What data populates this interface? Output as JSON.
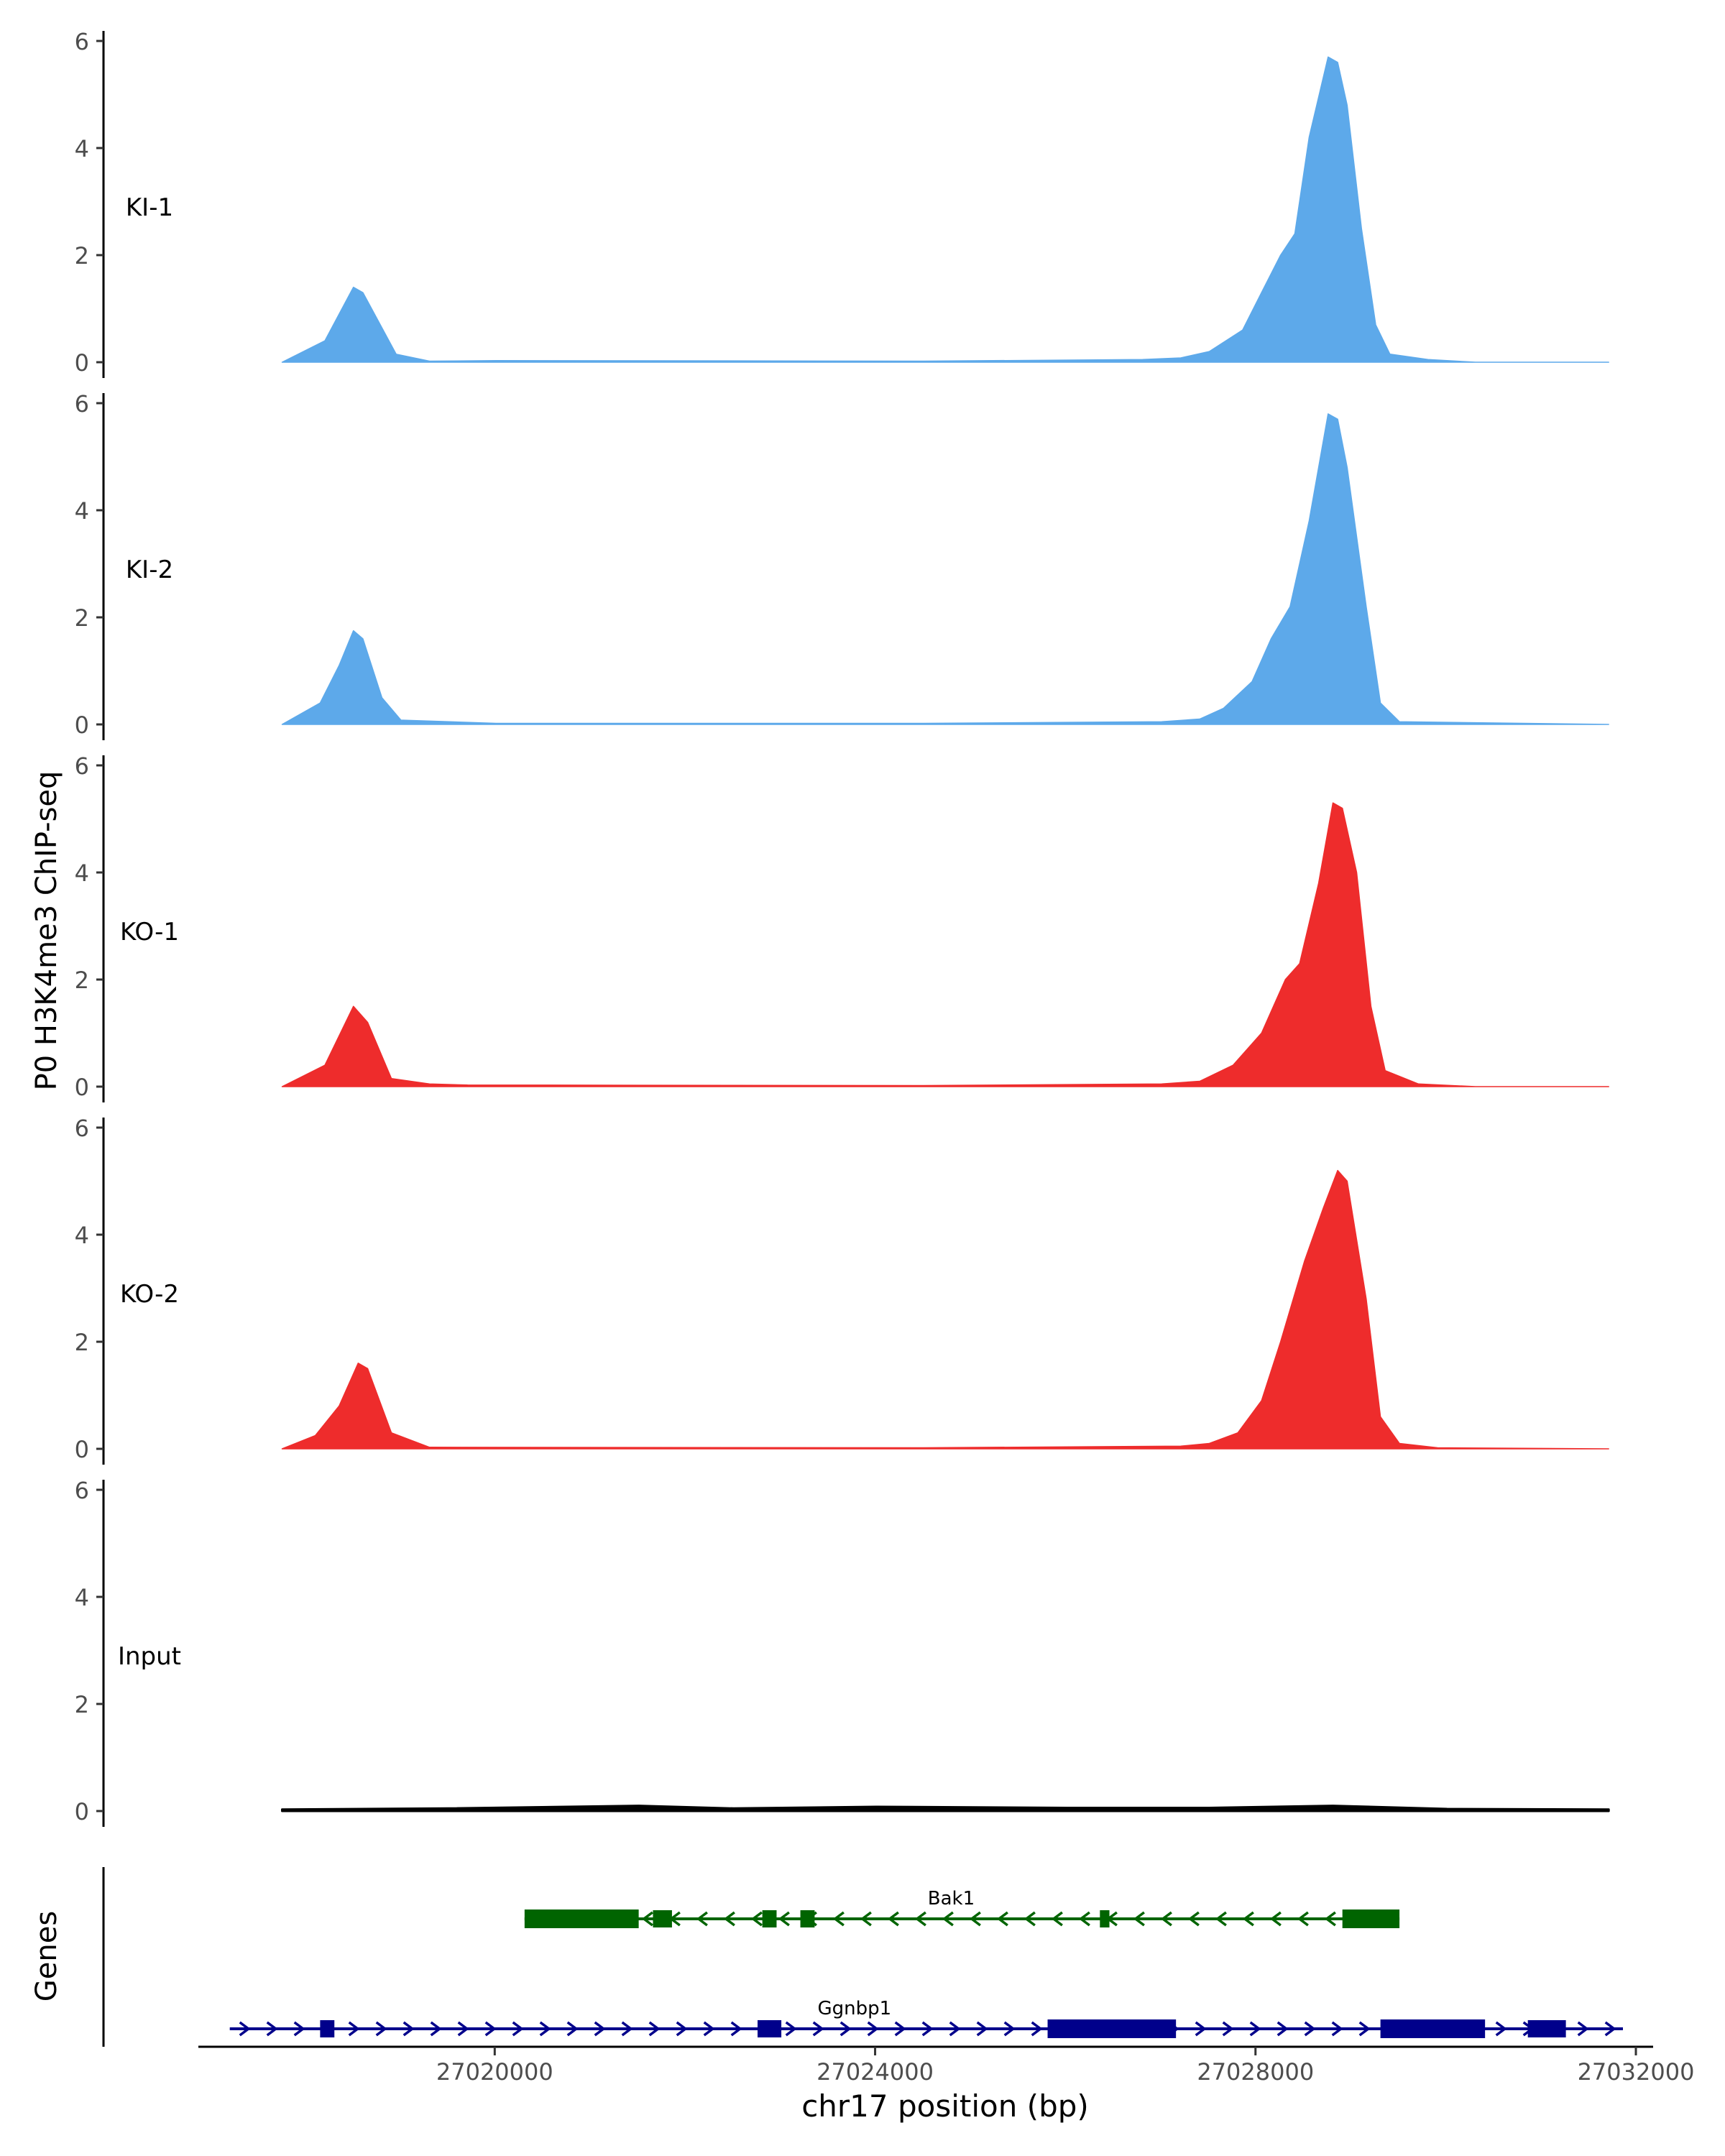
{
  "chart_data": {
    "type": "area",
    "ylabel": "P0 H3K4me3 ChIP-seq",
    "xlabel": "chr17 position (bp)",
    "xlim": [
      27016400,
      27032000
    ],
    "ylim": [
      0,
      6
    ],
    "y_ticks": [
      "0",
      "2",
      "4",
      "6"
    ],
    "x_ticks": [
      {
        "value": 27020000,
        "label": "27020000"
      },
      {
        "value": 27024000,
        "label": "27024000"
      },
      {
        "value": 27028000,
        "label": "27028000"
      },
      {
        "value": 27032000,
        "label": "27032000"
      }
    ],
    "colors": {
      "KI": "#5DA9EA",
      "KO": "#EE2C2C",
      "Input": "#000000",
      "Bak1": "#006400",
      "Ggnbp1": "#00008B"
    },
    "tracks": [
      {
        "name": "KI-1",
        "color": "#5DA9EA",
        "points": [
          [
            27017250,
            0
          ],
          [
            27017700,
            0.4
          ],
          [
            27018000,
            1.4
          ],
          [
            27018100,
            1.3
          ],
          [
            27018450,
            0.15
          ],
          [
            27018800,
            0.02
          ],
          [
            27019500,
            0.03
          ],
          [
            27024000,
            0.02
          ],
          [
            27026300,
            0.05
          ],
          [
            27026700,
            0.08
          ],
          [
            27027000,
            0.2
          ],
          [
            27027350,
            0.6
          ],
          [
            27027550,
            1.3
          ],
          [
            27027750,
            2.0
          ],
          [
            27027900,
            2.4
          ],
          [
            27028050,
            4.2
          ],
          [
            27028250,
            5.7
          ],
          [
            27028350,
            5.6
          ],
          [
            27028450,
            4.8
          ],
          [
            27028600,
            2.5
          ],
          [
            27028750,
            0.7
          ],
          [
            27028900,
            0.15
          ],
          [
            27029300,
            0.05
          ],
          [
            27029800,
            0
          ],
          [
            27031200,
            0
          ]
        ]
      },
      {
        "name": "KI-2",
        "color": "#5DA9EA",
        "points": [
          [
            27017250,
            0
          ],
          [
            27017650,
            0.4
          ],
          [
            27017850,
            1.1
          ],
          [
            27018000,
            1.75
          ],
          [
            27018100,
            1.6
          ],
          [
            27018300,
            0.5
          ],
          [
            27018500,
            0.08
          ],
          [
            27019500,
            0.02
          ],
          [
            27024000,
            0.02
          ],
          [
            27026500,
            0.05
          ],
          [
            27026900,
            0.1
          ],
          [
            27027150,
            0.3
          ],
          [
            27027450,
            0.8
          ],
          [
            27027650,
            1.6
          ],
          [
            27027850,
            2.2
          ],
          [
            27028050,
            3.8
          ],
          [
            27028250,
            5.8
          ],
          [
            27028350,
            5.7
          ],
          [
            27028450,
            4.8
          ],
          [
            27028650,
            2.2
          ],
          [
            27028800,
            0.4
          ],
          [
            27029000,
            0.05
          ],
          [
            27031200,
            0
          ]
        ]
      },
      {
        "name": "KO-1",
        "color": "#EE2C2C",
        "points": [
          [
            27017250,
            0
          ],
          [
            27017700,
            0.4
          ],
          [
            27018000,
            1.5
          ],
          [
            27018150,
            1.2
          ],
          [
            27018400,
            0.15
          ],
          [
            27018800,
            0.05
          ],
          [
            27019200,
            0.03
          ],
          [
            27024000,
            0.02
          ],
          [
            27026500,
            0.05
          ],
          [
            27026900,
            0.1
          ],
          [
            27027250,
            0.4
          ],
          [
            27027550,
            1.0
          ],
          [
            27027800,
            2.0
          ],
          [
            27027950,
            2.3
          ],
          [
            27028150,
            3.8
          ],
          [
            27028300,
            5.3
          ],
          [
            27028400,
            5.2
          ],
          [
            27028550,
            4.0
          ],
          [
            27028700,
            1.5
          ],
          [
            27028850,
            0.3
          ],
          [
            27029200,
            0.05
          ],
          [
            27029800,
            0
          ],
          [
            27031200,
            0
          ]
        ]
      },
      {
        "name": "KO-2",
        "color": "#EE2C2C",
        "points": [
          [
            27017250,
            0
          ],
          [
            27017600,
            0.25
          ],
          [
            27017850,
            0.8
          ],
          [
            27018050,
            1.6
          ],
          [
            27018150,
            1.5
          ],
          [
            27018400,
            0.3
          ],
          [
            27018800,
            0.03
          ],
          [
            27024000,
            0.02
          ],
          [
            27026700,
            0.05
          ],
          [
            27027000,
            0.1
          ],
          [
            27027300,
            0.3
          ],
          [
            27027550,
            0.9
          ],
          [
            27027750,
            2.0
          ],
          [
            27028000,
            3.5
          ],
          [
            27028200,
            4.5
          ],
          [
            27028350,
            5.2
          ],
          [
            27028450,
            5.0
          ],
          [
            27028650,
            2.8
          ],
          [
            27028800,
            0.6
          ],
          [
            27029000,
            0.1
          ],
          [
            27029400,
            0.02
          ],
          [
            27031200,
            0
          ]
        ]
      },
      {
        "name": "Input",
        "color": "#000000",
        "points": [
          [
            27017250,
            0.03
          ],
          [
            27019000,
            0.05
          ],
          [
            27021000,
            0.1
          ],
          [
            27022000,
            0.05
          ],
          [
            27023500,
            0.08
          ],
          [
            27025500,
            0.06
          ],
          [
            27027000,
            0.06
          ],
          [
            27028300,
            0.1
          ],
          [
            27029500,
            0.04
          ],
          [
            27031200,
            0.03
          ]
        ]
      }
    ],
    "genes": {
      "track_label": "Genes",
      "rows": [
        {
          "name": "Bak1",
          "color": "#006400",
          "strand": "-",
          "start": 27019800,
          "end": 27029000,
          "exons": [
            [
              27019800,
              27021000,
              "thick"
            ],
            [
              27021150,
              27021350,
              "mid"
            ],
            [
              27022300,
              27022450,
              "mid"
            ],
            [
              27022700,
              27022850,
              "mid"
            ],
            [
              27025850,
              27025950,
              "mid"
            ],
            [
              27028400,
              27029000,
              "thick"
            ]
          ]
        },
        {
          "name": "Ggnbp1",
          "color": "#00008B",
          "strand": "+",
          "start": 27016700,
          "end": 27031350,
          "exons": [
            [
              27017650,
              27017800,
              "mid"
            ],
            [
              27022250,
              27022500,
              "mid"
            ],
            [
              27025300,
              27026650,
              "thick"
            ],
            [
              27028800,
              27029900,
              "thick"
            ],
            [
              27030350,
              27030750,
              "mid"
            ]
          ]
        }
      ]
    }
  }
}
